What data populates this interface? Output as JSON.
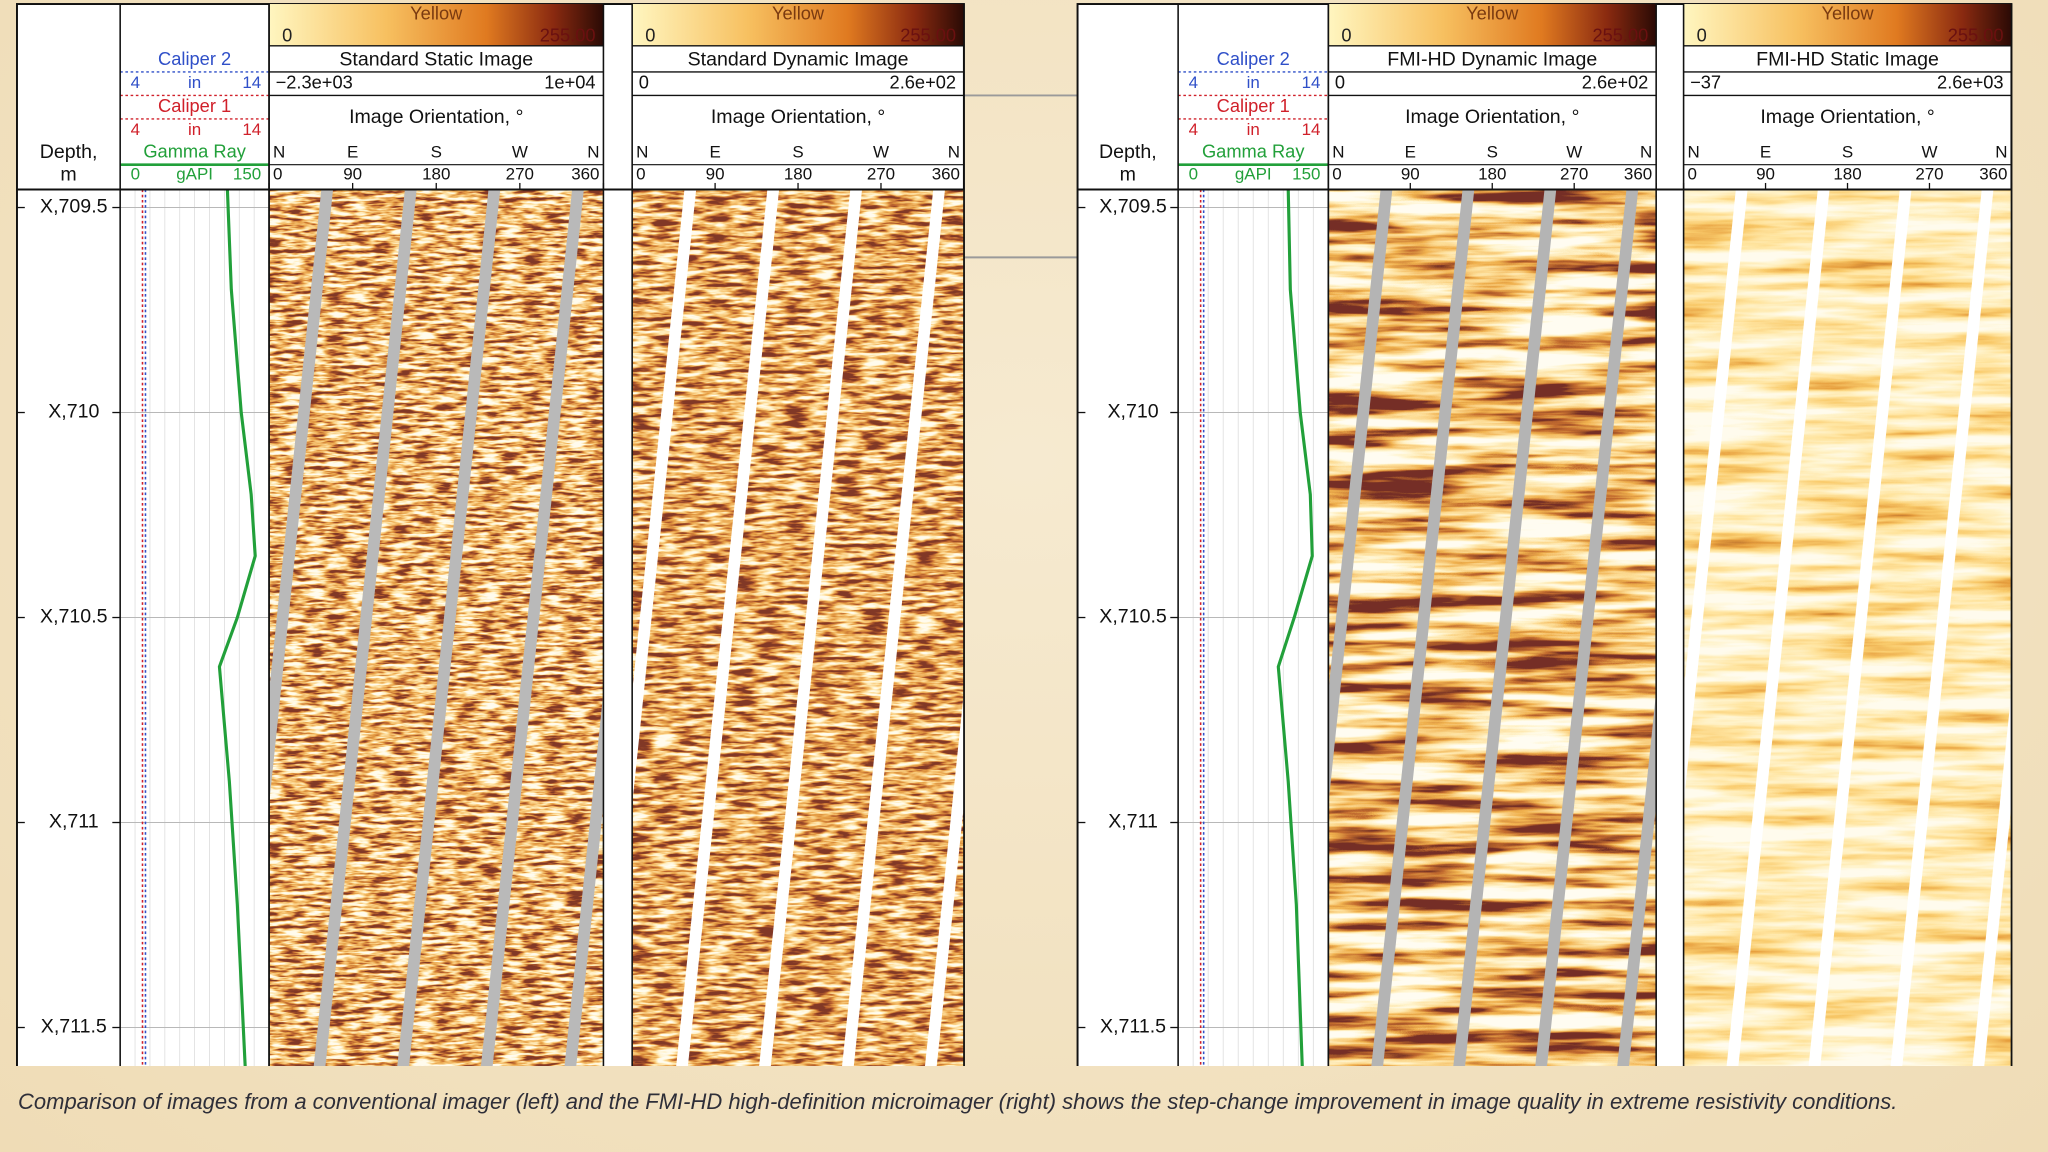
{
  "panels": [
    {
      "depth_title": [
        "Depth,",
        "m"
      ],
      "depth_range": [
        709.456,
        711.6
      ],
      "depth_ticks": [
        {
          "value": 709.5,
          "label": "X,709.5"
        },
        {
          "value": 710,
          "label": "X,710"
        },
        {
          "value": 710.5,
          "label": "X,710.5"
        },
        {
          "value": 711,
          "label": "X,711"
        },
        {
          "value": 711.5,
          "label": "X,711.5"
        }
      ],
      "caliper_2": {
        "name": "Caliper 2",
        "min": 4,
        "unit": "in",
        "max": 14,
        "value": 5.7
      },
      "caliper_1": {
        "name": "Caliper 1",
        "min": 4,
        "unit": "in",
        "max": 14,
        "value": 5.5
      },
      "gamma_ray": {
        "name": "Gamma Ray",
        "min": 0,
        "unit": "gAPI",
        "max": 150,
        "depths": [
          709.456,
          709.7,
          710.0,
          710.2,
          710.35,
          710.5,
          710.62,
          710.9,
          711.2,
          711.6
        ],
        "values": [
          108,
          112,
          122,
          132,
          136,
          118,
          100,
          110,
          118,
          126
        ]
      },
      "images": [
        {
          "colorbar": [
            "0",
            "Yellow",
            "255.00"
          ],
          "title": "Standard Static Image",
          "scale": [
            "−2.3e+03",
            "1e+04"
          ],
          "orientation_title": "Image Orientation, °",
          "compass": [
            "N",
            "E",
            "S",
            "W",
            "N"
          ],
          "degrees": [
            0,
            90,
            180,
            270,
            360
          ]
        },
        {
          "colorbar": [
            "0",
            "Yellow",
            "255.00"
          ],
          "title": "Standard Dynamic Image",
          "scale": [
            "0",
            "2.6e+02"
          ],
          "orientation_title": "Image Orientation, °",
          "compass": [
            "N",
            "E",
            "S",
            "W",
            "N"
          ],
          "degrees": [
            0,
            90,
            180,
            270,
            360
          ]
        }
      ]
    },
    {
      "depth_title": [
        "Depth,",
        "m"
      ],
      "depth_range": [
        709.456,
        711.6
      ],
      "depth_ticks": [
        {
          "value": 709.5,
          "label": "X,709.5"
        },
        {
          "value": 710,
          "label": "X,710"
        },
        {
          "value": 710.5,
          "label": "X,710.5"
        },
        {
          "value": 711,
          "label": "X,711"
        },
        {
          "value": 711.5,
          "label": "X,711.5"
        }
      ],
      "caliper_2": {
        "name": "Caliper 2",
        "min": 4,
        "unit": "in",
        "max": 14,
        "value": 5.7
      },
      "caliper_1": {
        "name": "Caliper 1",
        "min": 4,
        "unit": "in",
        "max": 14,
        "value": 5.5
      },
      "gamma_ray": {
        "name": "Gamma Ray",
        "min": 0,
        "unit": "gAPI",
        "max": 150,
        "depths": [
          709.456,
          709.7,
          710.0,
          710.2,
          710.35,
          710.5,
          710.62,
          710.9,
          711.2,
          711.6
        ],
        "values": [
          110,
          112,
          122,
          132,
          134,
          116,
          100,
          110,
          118,
          124
        ]
      },
      "images": [
        {
          "colorbar": [
            "0",
            "Yellow",
            "255.00"
          ],
          "title": "FMI-HD Dynamic Image",
          "scale": [
            "0",
            "2.6e+02"
          ],
          "orientation_title": "Image Orientation, °",
          "compass": [
            "N",
            "E",
            "S",
            "W",
            "N"
          ],
          "degrees": [
            0,
            90,
            180,
            270,
            360
          ]
        },
        {
          "colorbar": [
            "0",
            "Yellow",
            "255.00"
          ],
          "title": "FMI-HD Static Image",
          "scale": [
            "−37",
            "2.6e+03"
          ],
          "orientation_title": "Image Orientation, °",
          "compass": [
            "N",
            "E",
            "S",
            "W",
            "N"
          ],
          "degrees": [
            0,
            90,
            180,
            270,
            360
          ]
        }
      ]
    }
  ],
  "caption": "Comparison of images from a conventional imager (left) and the FMI-HD high-definition microimager (right) shows the step-change improvement in image quality in extreme resistivity conditions."
}
